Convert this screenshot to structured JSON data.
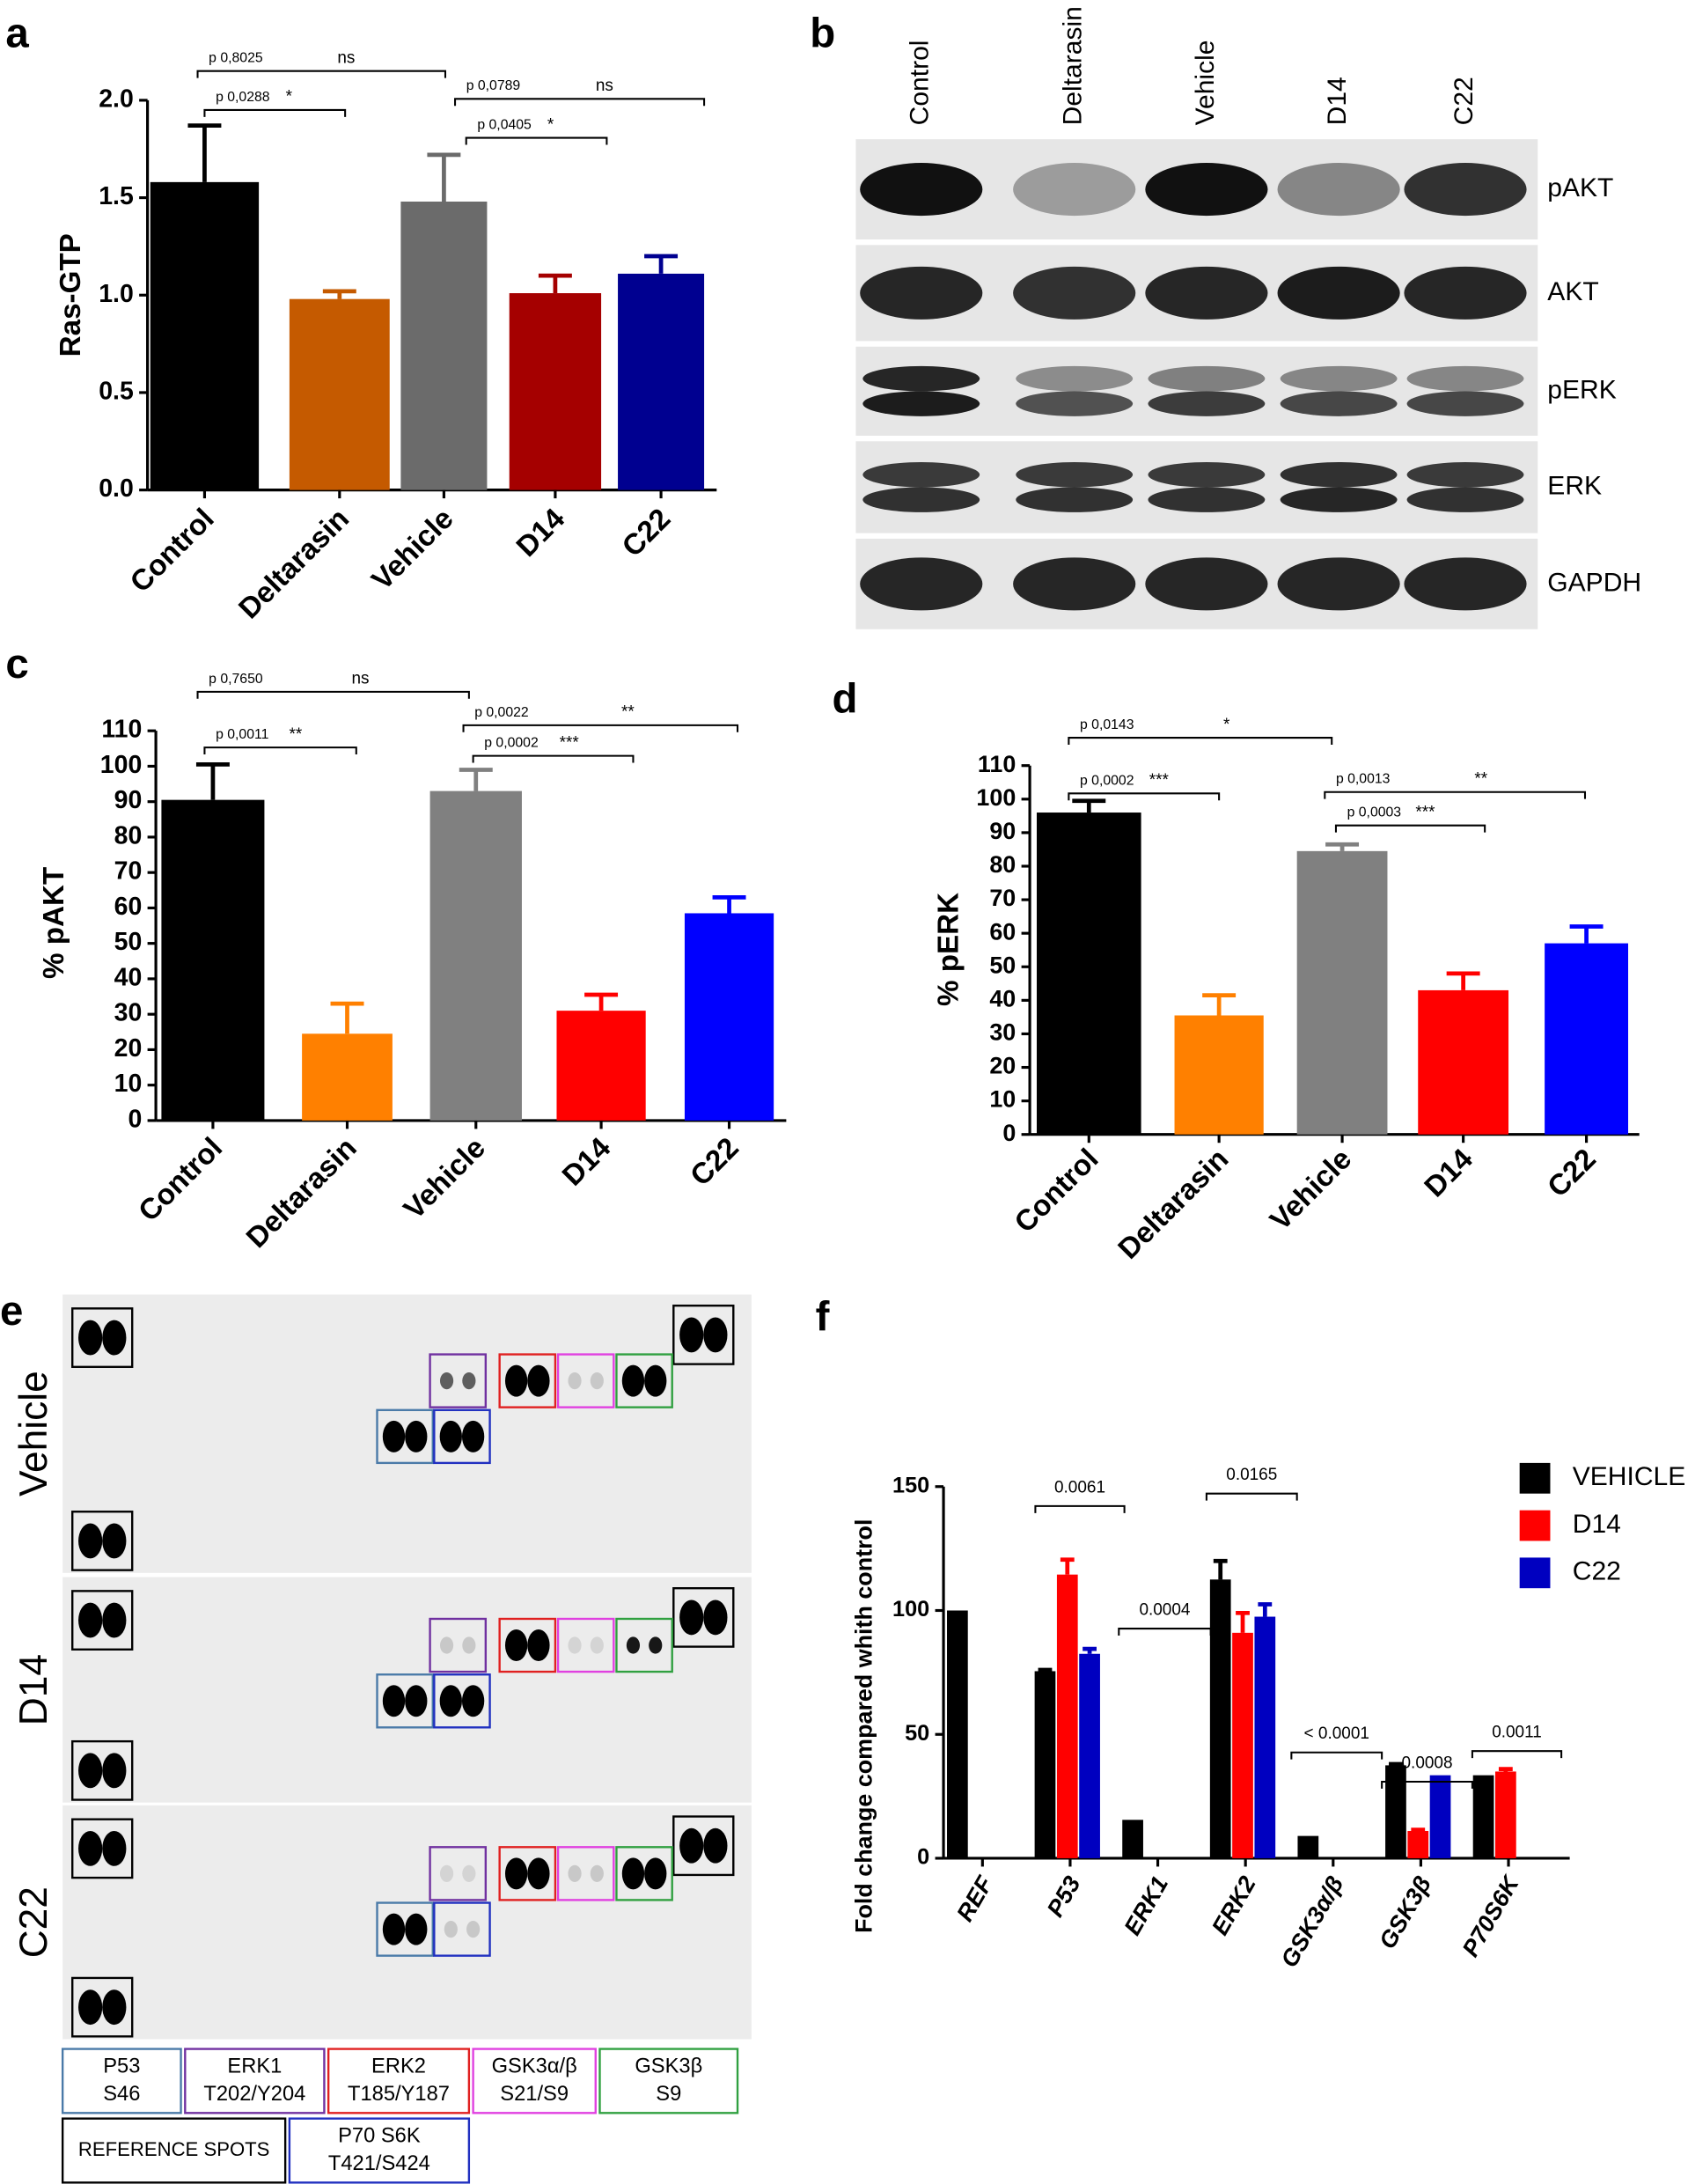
{
  "chart_data": [
    {
      "type": "bar",
      "panel_label": "a",
      "y_label": "Ras-GTP",
      "categories": [
        "Control",
        "Deltarasin",
        "Vehicle",
        "D14",
        "C22"
      ],
      "values": [
        1.58,
        0.98,
        1.48,
        1.01,
        1.11
      ],
      "errors": [
        0.29,
        0.04,
        0.24,
        0.09,
        0.09
      ],
      "colors": [
        "#000000",
        "#c55a00",
        "#6b6b6b",
        "#a50000",
        "#000090"
      ],
      "ylim": [
        0,
        2
      ],
      "yticks": [
        {
          "value": 0,
          "label": "0.0"
        },
        0.5,
        {
          "value": 1,
          "label": "1.0"
        },
        1.5,
        {
          "value": 2,
          "label": "2.0"
        }
      ],
      "annotations": [
        {
          "label": "p 0,8025",
          "mark": "ns"
        },
        {
          "label": "p 0,0288",
          "mark": "*"
        },
        {
          "label": "p 0,0789",
          "mark": "ns"
        },
        {
          "label": "p 0,0405",
          "mark": "*"
        }
      ]
    },
    {
      "type": "bar",
      "panel_label": "c",
      "y_label": "% pAKT",
      "categories": [
        "Control",
        "Deltarasin",
        "Vehicle",
        "D14",
        "C22"
      ],
      "values": [
        90.5,
        24.5,
        93,
        31,
        58.5
      ],
      "errors": [
        10,
        8.5,
        6,
        4.5,
        4.5
      ],
      "colors": [
        "#000000",
        "#ff8000",
        "#808080",
        "#ff0000",
        "#0000ff"
      ],
      "ylim": [
        0,
        110
      ],
      "yticks": [
        0,
        10,
        20,
        30,
        40,
        50,
        60,
        70,
        80,
        90,
        100,
        110
      ],
      "annotations": [
        {
          "label": "p 0,7650",
          "mark": "ns"
        },
        {
          "label": "p 0,0011",
          "mark": "**"
        },
        {
          "label": "p 0,0022",
          "mark": "**"
        },
        {
          "label": "p 0,0002",
          "mark": "***"
        }
      ]
    },
    {
      "type": "bar",
      "panel_label": "d",
      "y_label": "% pERK",
      "categories": [
        "Control",
        "Deltarasin",
        "Vehicle",
        "D14",
        "C22"
      ],
      "values": [
        96,
        35.5,
        84.5,
        43,
        57
      ],
      "errors": [
        3.5,
        6,
        2,
        5,
        5
      ],
      "colors": [
        "#000000",
        "#ff8000",
        "#808080",
        "#ff0000",
        "#0000ff"
      ],
      "ylim": [
        0,
        110
      ],
      "yticks": [
        0,
        10,
        20,
        30,
        40,
        50,
        60,
        70,
        80,
        90,
        100,
        110
      ],
      "annotations": [
        {
          "label": "p 0,0143",
          "mark": "*"
        },
        {
          "label": "p 0,0002",
          "mark": "***"
        },
        {
          "label": "p 0,0013",
          "mark": "**"
        },
        {
          "label": "p 0,0003",
          "mark": "***"
        }
      ]
    },
    {
      "type": "bar",
      "panel_label": "f",
      "y_label": "Fold change compared whith control",
      "categories": [
        "REF",
        "P53",
        "ERK1",
        "ERK2",
        "GSK3α/β",
        "GSK3β",
        "P70S6K"
      ],
      "series": [
        {
          "name": "VEHICLE",
          "color": "#000000",
          "values": [
            100,
            75.5,
            15.5,
            112.5,
            9,
            37.5,
            33.5
          ],
          "errors": [
            null,
            0.5,
            null,
            7.5,
            null,
            0.5,
            null
          ]
        },
        {
          "name": "D14",
          "color": "#ff0000",
          "values": [
            null,
            114.5,
            null,
            91,
            null,
            11,
            35
          ],
          "errors": [
            null,
            6,
            null,
            8,
            null,
            0.5,
            1
          ]
        },
        {
          "name": "C22",
          "color": "#0000c0",
          "values": [
            null,
            82.5,
            null,
            97.5,
            null,
            33.5,
            null
          ],
          "errors": [
            null,
            2,
            null,
            5,
            null,
            null,
            null
          ]
        }
      ],
      "ylim": [
        0,
        150
      ],
      "yticks": [
        0,
        50,
        100,
        150
      ],
      "annotations": [
        {
          "label": "0.0061"
        },
        {
          "label": "0.0004"
        },
        {
          "label": "0.0165"
        },
        {
          "label": "< 0.0001"
        },
        {
          "label": "0.0008"
        },
        {
          "label": "0.0011"
        }
      ]
    }
  ],
  "blot": {
    "panel_label": "b",
    "lanes": [
      "Control",
      "Deltarasin",
      "Vehicle",
      "D14",
      "C22"
    ],
    "rows": [
      "pAKT",
      "AKT",
      "pERK",
      "ERK",
      "GAPDH"
    ]
  },
  "dot_blot": {
    "panel_label": "e",
    "rows": [
      "Vehicle",
      "D14",
      "C22"
    ],
    "legend": [
      {
        "target": "P53",
        "site": "S46"
      },
      {
        "target": "ERK1",
        "site": "T202/Y204"
      },
      {
        "target": "ERK2",
        "site": "T185/Y187"
      },
      {
        "target": "GSK3α/β",
        "site": "S21/S9"
      },
      {
        "target": "GSK3β",
        "site": "S9"
      },
      {
        "target": "REFERENCE SPOTS"
      },
      {
        "target": "P70 S6K",
        "site": "T421/S424"
      }
    ]
  }
}
